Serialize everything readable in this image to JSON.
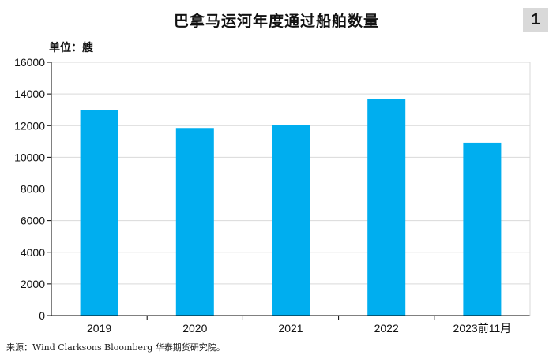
{
  "header": {
    "title": "巴拿马运河年度通过船舶数量",
    "badge": "1"
  },
  "unit_label": "单位：艘",
  "source": "来源：Wind Clarksons Bloomberg 华泰期货研究院。",
  "chart_data": {
    "type": "bar",
    "title": "巴拿马运河年度通过船舶数量",
    "ylabel": "单位：艘",
    "categories": [
      "2019",
      "2020",
      "2021",
      "2022",
      "2023前11月"
    ],
    "values": [
      13000,
      11850,
      12050,
      13670,
      10920
    ],
    "ylim": [
      0,
      16000
    ],
    "yticks": [
      "0",
      "2000",
      "4000",
      "6000",
      "8000",
      "10000",
      "12000",
      "14000",
      "16000"
    ],
    "grid": true,
    "bar_color": "#00aeef",
    "grid_color": "#d9d9d9"
  }
}
